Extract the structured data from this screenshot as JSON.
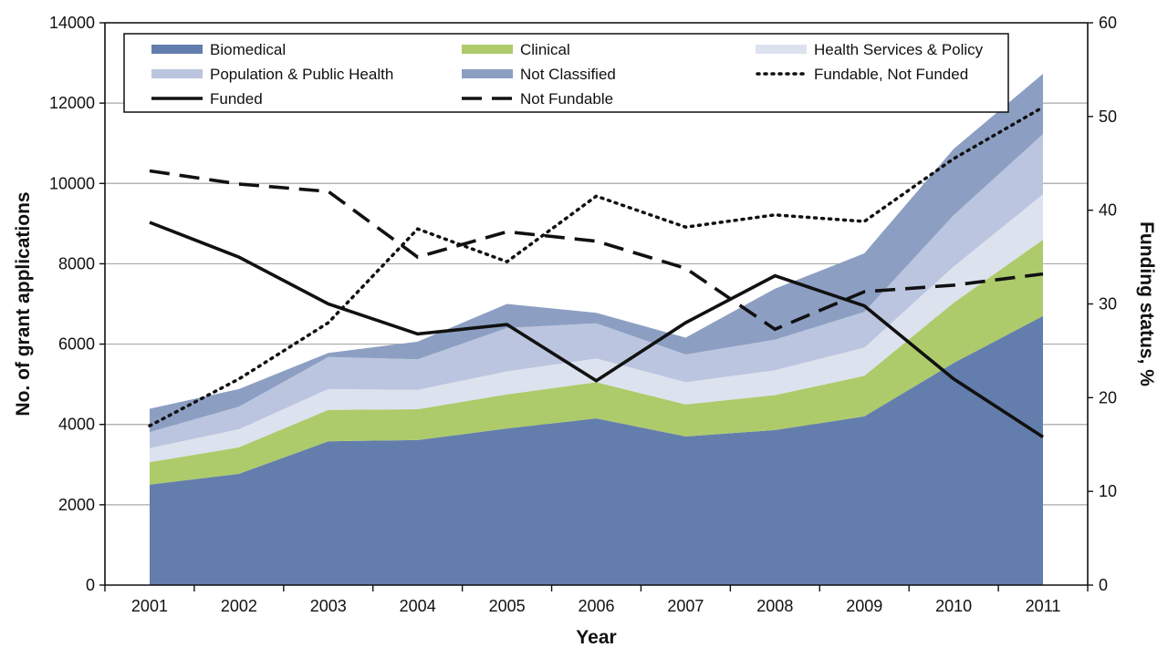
{
  "chart_data": {
    "type": "area",
    "title": "",
    "xlabel": "Year",
    "ylabel_left": "No. of grant applications",
    "ylabel_right": "Funding status, %",
    "x": [
      "2001",
      "2002",
      "2003",
      "2004",
      "2005",
      "2006",
      "2007",
      "2008",
      "2009",
      "2010",
      "2011"
    ],
    "ylim_left": [
      0,
      14000
    ],
    "yticks_left": [
      "0",
      "2000",
      "4000",
      "6000",
      "8000",
      "10000",
      "12000",
      "14000"
    ],
    "ylim_right": [
      0,
      60
    ],
    "yticks_right": [
      "0",
      "10",
      "20",
      "30",
      "40",
      "50",
      "60"
    ],
    "grid": true,
    "legend_position": "top",
    "stacked_series": [
      {
        "name": "Biomedical",
        "color": "#637ead",
        "values": [
          2500,
          2770,
          3580,
          3610,
          3900,
          4150,
          3700,
          3860,
          4200,
          5530,
          6700
        ]
      },
      {
        "name": "Clinical",
        "color": "#adcb6b",
        "values": [
          560,
          660,
          780,
          770,
          850,
          900,
          800,
          870,
          1010,
          1500,
          1900
        ]
      },
      {
        "name": "Health Services & Policy",
        "color": "#dde2ef",
        "values": [
          350,
          450,
          520,
          480,
          570,
          590,
          550,
          620,
          700,
          900,
          1130
        ]
      },
      {
        "name": "Population & Public Health",
        "color": "#bcc5df",
        "values": [
          400,
          560,
          800,
          760,
          1080,
          880,
          690,
          760,
          890,
          1280,
          1500
        ]
      },
      {
        "name": "Not Classified",
        "color": "#8c9fc3",
        "values": [
          580,
          440,
          100,
          440,
          600,
          260,
          420,
          1270,
          1460,
          1650,
          1500
        ]
      }
    ],
    "line_series": [
      {
        "name": "Fundable, Not Funded",
        "style": "dotted",
        "axis": "right",
        "values": [
          17,
          22,
          28,
          38,
          34.5,
          41.5,
          38.2,
          39.5,
          38.8,
          45.5,
          51
        ]
      },
      {
        "name": "Funded",
        "style": "solid",
        "axis": "right",
        "values": [
          38.7,
          35,
          30,
          26.8,
          27.8,
          21.8,
          28,
          33,
          29.8,
          22,
          15.8
        ]
      },
      {
        "name": "Not Fundable",
        "style": "dashed",
        "axis": "right",
        "values": [
          44.2,
          42.8,
          42,
          35,
          37.7,
          36.7,
          33.8,
          27.3,
          31.3,
          32,
          33.2
        ]
      }
    ]
  }
}
